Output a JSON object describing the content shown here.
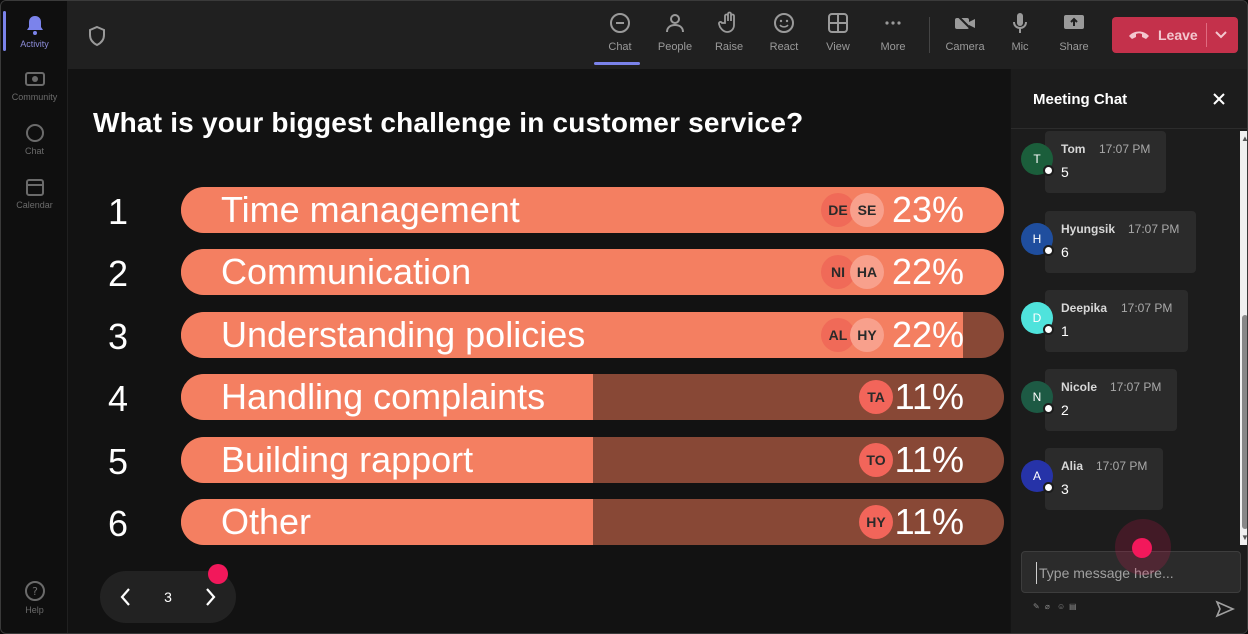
{
  "rail": {
    "items": [
      {
        "label": "Activity",
        "active": true
      },
      {
        "label": "Community"
      },
      {
        "label": "Chat"
      },
      {
        "label": "Calendar"
      }
    ],
    "help_label": "Help"
  },
  "toolbar": {
    "chat": "Chat",
    "people": "People",
    "raise": "Raise",
    "react": "React",
    "view": "View",
    "more": "More",
    "camera": "Camera",
    "mic": "Mic",
    "share": "Share",
    "leave": "Leave"
  },
  "poll": {
    "question": "What is your biggest challenge in customer service?",
    "options": [
      {
        "num": "1",
        "label": "Time management",
        "percent_text": "23%",
        "fill": 1.0,
        "avatars": [
          "DE",
          "SE"
        ]
      },
      {
        "num": "2",
        "label": "Communication",
        "percent_text": "22%",
        "fill": 1.0,
        "avatars": [
          "NI",
          "HA"
        ]
      },
      {
        "num": "3",
        "label": "Understanding policies",
        "percent_text": "22%",
        "fill": 0.95,
        "avatars": [
          "AL",
          "HY"
        ]
      },
      {
        "num": "4",
        "label": "Handling complaints",
        "percent_text": "11%",
        "fill": 0.5,
        "avatars": [
          "TA"
        ]
      },
      {
        "num": "5",
        "label": "Building rapport",
        "percent_text": "11%",
        "fill": 0.5,
        "avatars": [
          "TO"
        ]
      },
      {
        "num": "6",
        "label": "Other",
        "percent_text": "11%",
        "fill": 0.5,
        "avatars": [
          "HY"
        ]
      }
    ],
    "colors": {
      "fill": "#f47f61",
      "track": "#884836"
    }
  },
  "pager": {
    "page": "3"
  },
  "chat": {
    "title": "Meeting Chat",
    "messages": [
      {
        "initial": "T",
        "name": "Tom",
        "time": "17:07 PM",
        "text": "5",
        "color": "#1b5e3b"
      },
      {
        "initial": "H",
        "name": "Hyungsik",
        "time": "17:07 PM",
        "text": "6",
        "color": "#1f4e9e"
      },
      {
        "initial": "D",
        "name": "Deepika",
        "time": "17:07 PM",
        "text": "1",
        "color": "#4fe3dc"
      },
      {
        "initial": "N",
        "name": "Nicole",
        "time": "17:07 PM",
        "text": "2",
        "color": "#1d5a44"
      },
      {
        "initial": "A",
        "name": "Alia",
        "time": "17:07 PM",
        "text": "3",
        "color": "#2633a8"
      }
    ],
    "compose_placeholder": "Type message here..."
  }
}
